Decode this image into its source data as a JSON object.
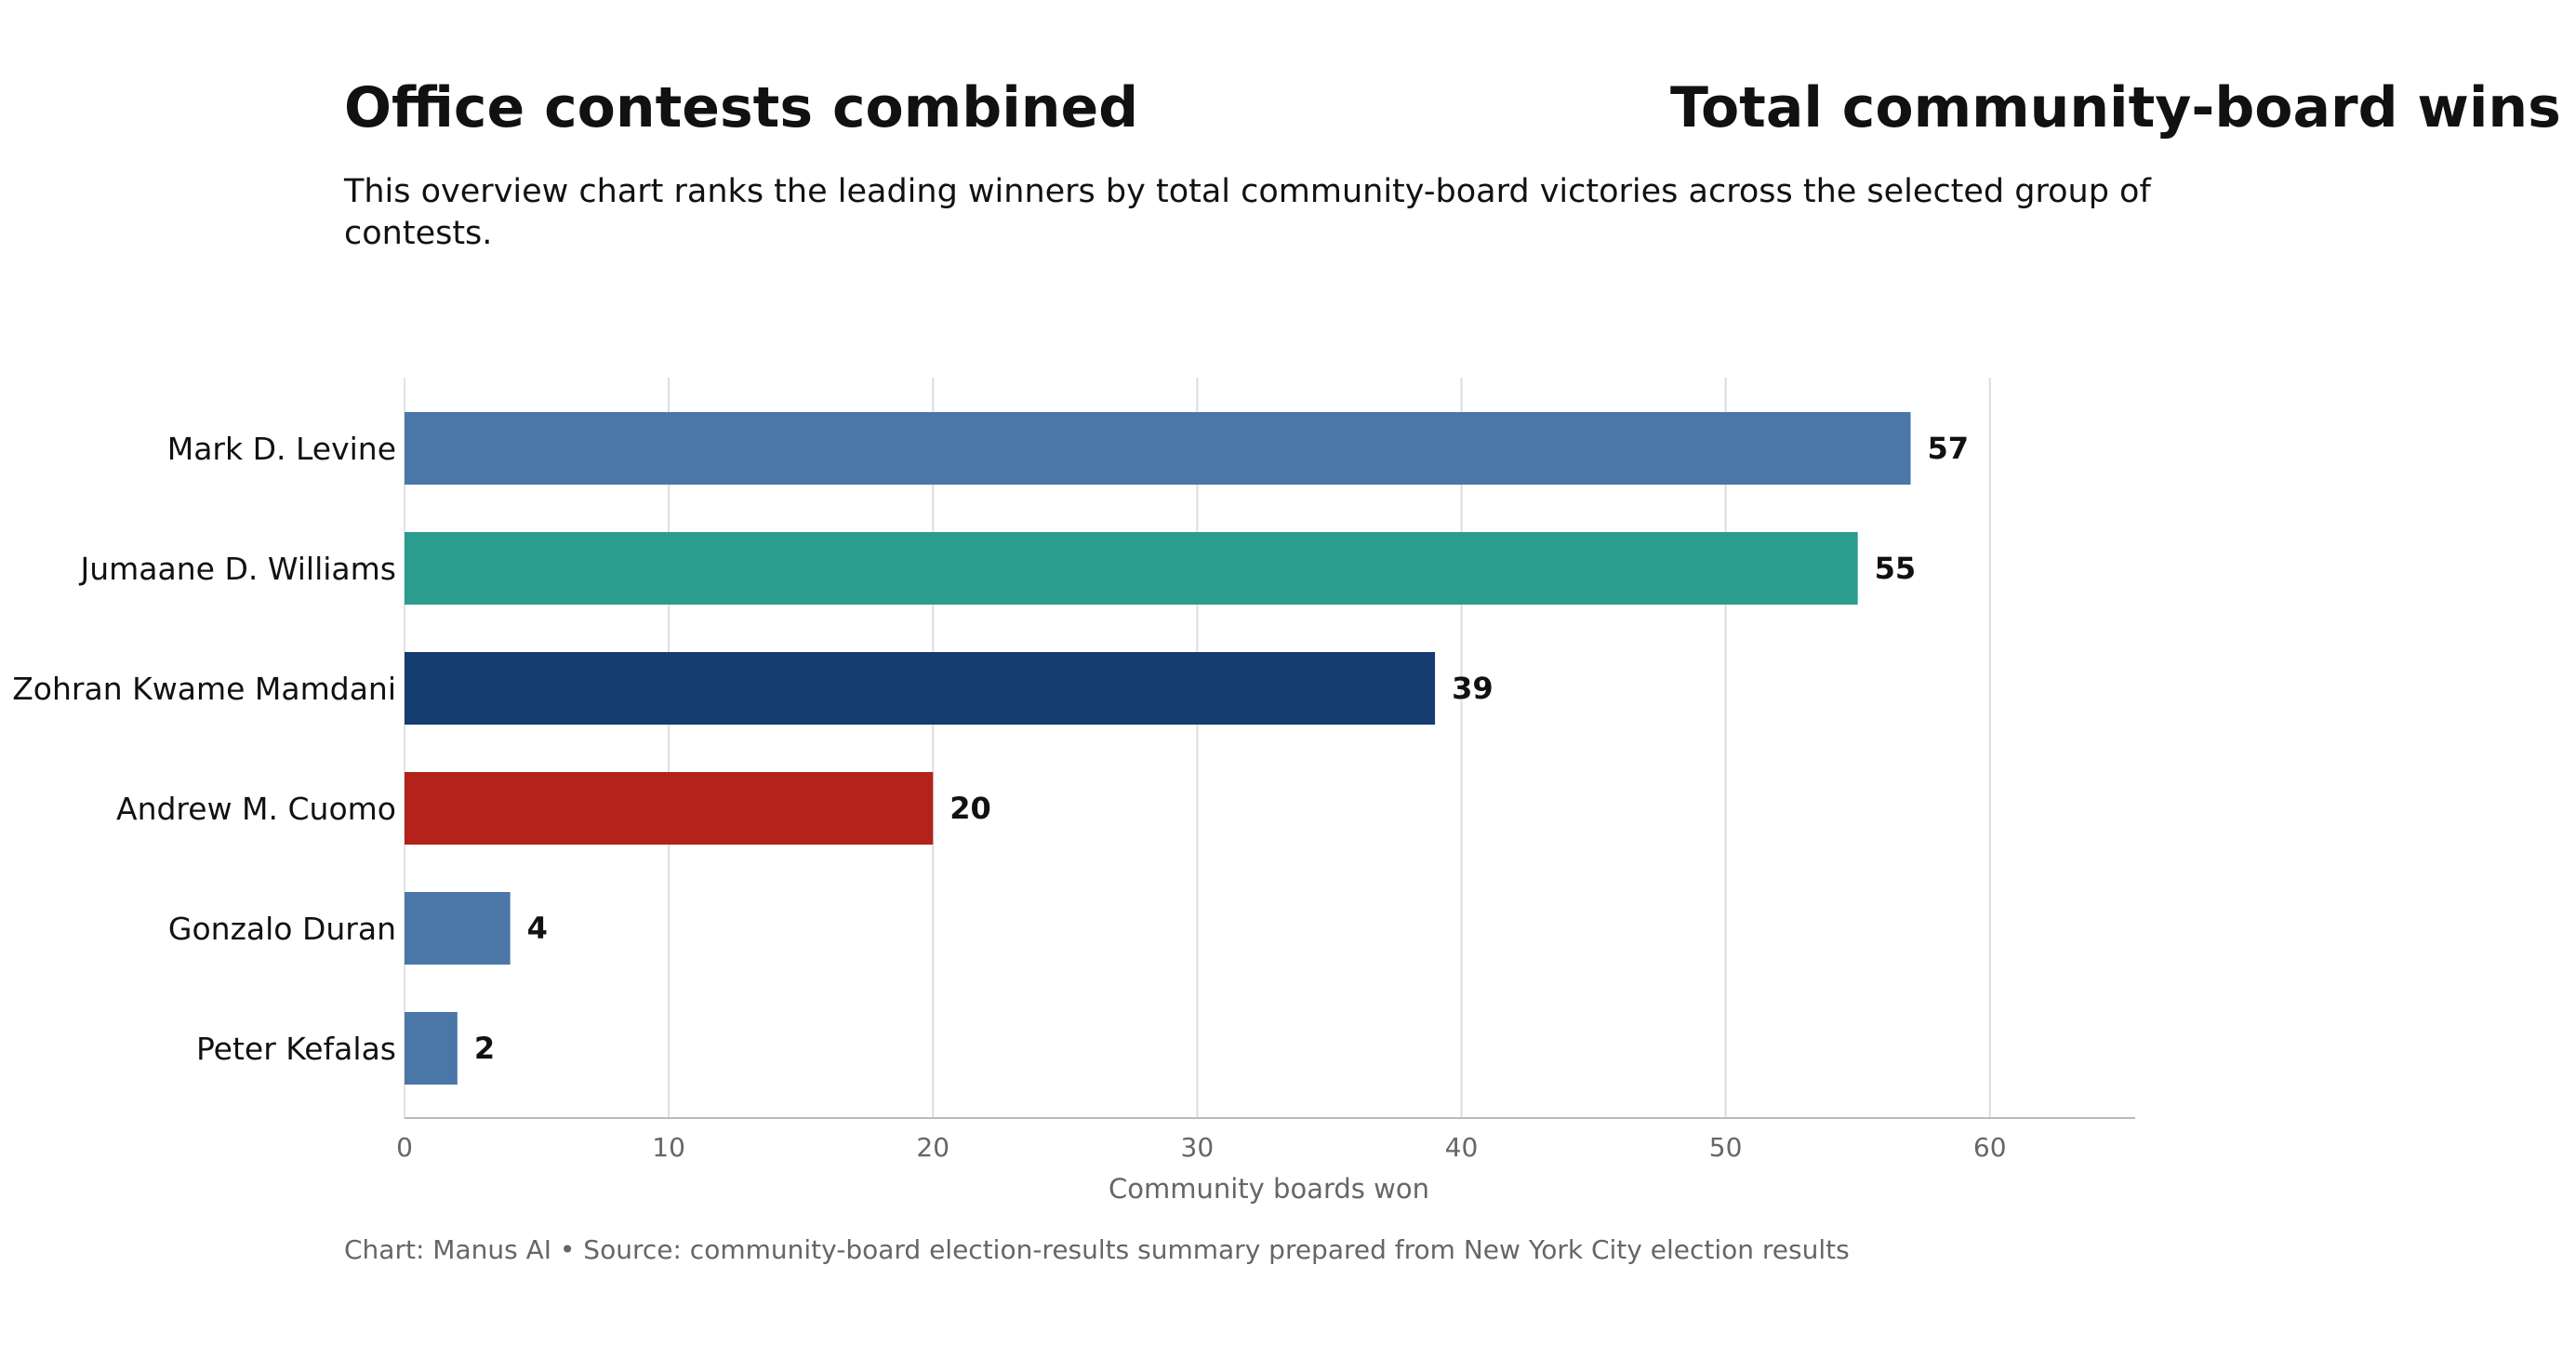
{
  "header": {
    "title_left": "Office contests combined",
    "title_right": "Total community-board wins",
    "subtitle": "This overview chart ranks the leading winners by total community-board victories across the selected group of contests."
  },
  "footer": {
    "source": "Chart: Manus AI • Source: community-board election-results summary prepared from New York City election results"
  },
  "chart_data": {
    "type": "bar",
    "orientation": "horizontal",
    "title": "Total community-board wins",
    "categories": [
      "Mark D. Levine",
      "Jumaane D. Williams",
      "Zohran Kwame Mamdani",
      "Andrew M. Cuomo",
      "Gonzalo Duran",
      "Peter Kefalas"
    ],
    "values": [
      57,
      55,
      39,
      20,
      4,
      2
    ],
    "bar_colors": [
      "#4a76a8",
      "#2a9d8f",
      "#163d6f",
      "#b3221b",
      "#4a76a8",
      "#4a76a8"
    ],
    "xlabel": "Community boards won",
    "ylabel": "",
    "xlim": [
      0,
      65.5
    ],
    "xticks": [
      0,
      10,
      20,
      30,
      40,
      50,
      60
    ],
    "grid": "vertical",
    "data_labels": true
  }
}
